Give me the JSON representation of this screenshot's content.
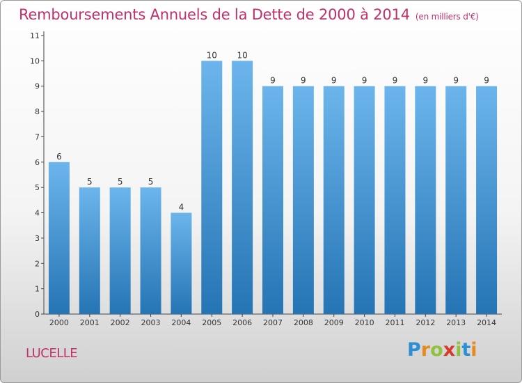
{
  "title": "Remboursements Annuels de la Dette de 2000 à 2014",
  "unit_note": "(en milliers d'€)",
  "commune": "LUCELLE",
  "logo": {
    "text": "Proxiti",
    "letter_colors": [
      "#2b8fd6",
      "#e8891c",
      "#8fc23d",
      "#d63a2a",
      "#8fc23d",
      "#2b8fd6",
      "#e8891c"
    ]
  },
  "colors": {
    "bar_top": "#6cb5ec",
    "bar_bottom": "#2574b4",
    "title": "#c0306a",
    "axis_text": "#333333"
  },
  "chart_data": {
    "type": "bar",
    "title": "Remboursements Annuels de la Dette de 2000 à 2014",
    "ylabel": "(en milliers d'€)",
    "xlabel": "",
    "categories": [
      "2000",
      "2001",
      "2002",
      "2003",
      "2004",
      "2005",
      "2006",
      "2007",
      "2008",
      "2009",
      "2010",
      "2011",
      "2012",
      "2013",
      "2014"
    ],
    "values": [
      6,
      5,
      5,
      5,
      4,
      10,
      10,
      9,
      9,
      9,
      9,
      9,
      9,
      9,
      9
    ],
    "data_labels": [
      "6",
      "5",
      "5",
      "5",
      "4",
      "10",
      "10",
      "9",
      "9",
      "9",
      "9",
      "9",
      "9",
      "9",
      "9"
    ],
    "yticks": [
      0,
      1,
      2,
      3,
      4,
      5,
      6,
      7,
      8,
      9,
      10,
      11
    ],
    "ylim": [
      0,
      11
    ],
    "grid": false
  }
}
